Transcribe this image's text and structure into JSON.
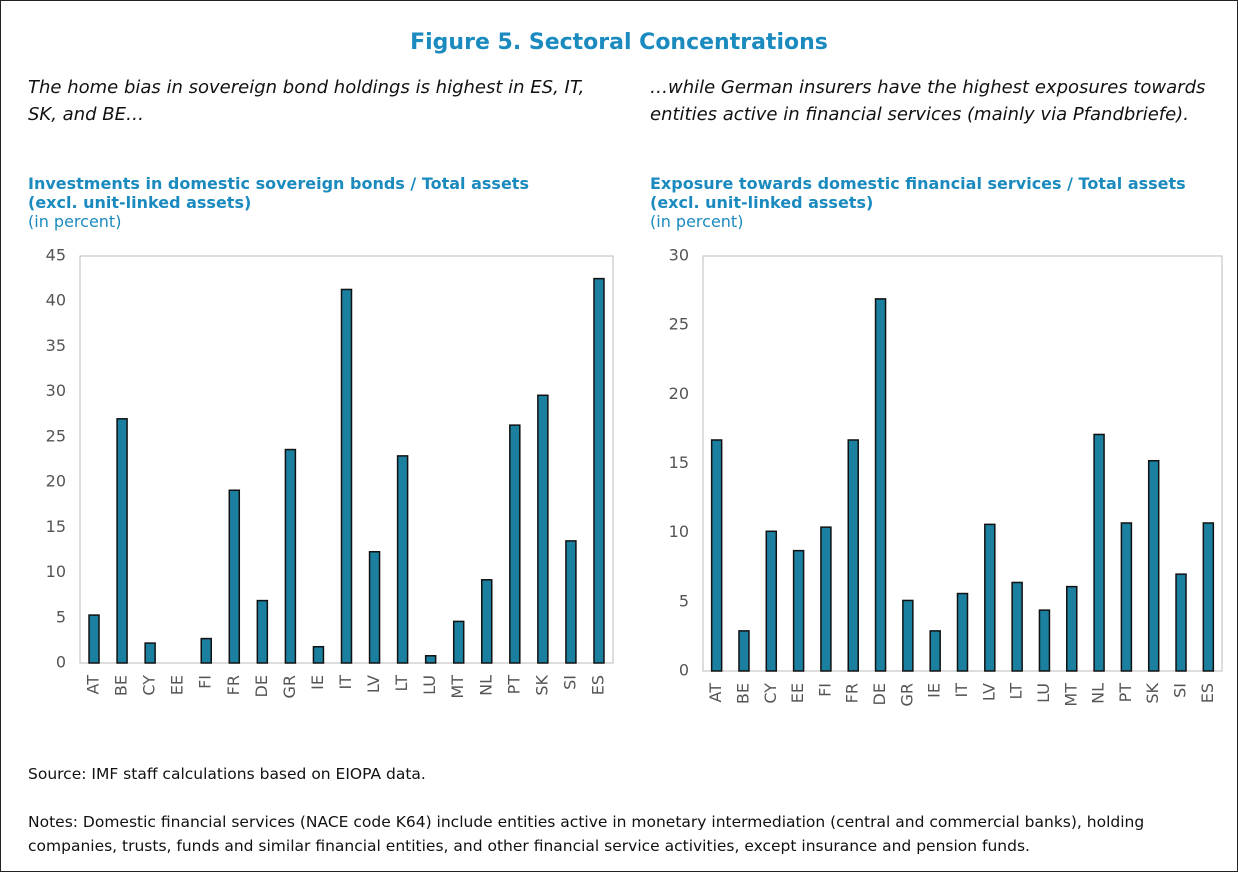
{
  "figure_title": "Figure 5. Sectoral Concentrations",
  "chart_data": [
    {
      "type": "bar",
      "caption": "The home bias in sovereign bond holdings is highest in ES, IT, SK, and BE…",
      "title": [
        "Investments in domestic sovereign bonds / Total assets",
        "(excl. unit-linked assets)"
      ],
      "subtitle": "(in percent)",
      "categories": [
        "AT",
        "BE",
        "CY",
        "EE",
        "FI",
        "FR",
        "DE",
        "GR",
        "IE",
        "IT",
        "LV",
        "LT",
        "LU",
        "MT",
        "NL",
        "PT",
        "SK",
        "SI",
        "ES"
      ],
      "values": [
        5.3,
        27,
        2.2,
        0,
        2.7,
        19.1,
        6.9,
        23.6,
        1.8,
        41.3,
        12.3,
        22.9,
        0.8,
        4.6,
        9.2,
        26.3,
        29.6,
        13.5,
        42.5
      ],
      "color": "#1b7fa0",
      "ylim": [
        0,
        45
      ],
      "yticks": [
        0,
        5,
        10,
        15,
        20,
        25,
        30,
        35,
        40,
        45
      ]
    },
    {
      "type": "bar",
      "caption": "…while German insurers have the highest exposures towards entities active in financial services (mainly via Pfandbriefe).",
      "title": [
        "Exposure towards domestic financial services / Total assets",
        "(excl. unit-linked assets)"
      ],
      "subtitle": "(in percent)",
      "categories": [
        "AT",
        "BE",
        "CY",
        "EE",
        "FI",
        "FR",
        "DE",
        "GR",
        "IE",
        "IT",
        "LV",
        "LT",
        "LU",
        "MT",
        "NL",
        "PT",
        "SK",
        "SI",
        "ES"
      ],
      "values": [
        16.7,
        2.9,
        10.1,
        8.7,
        10.4,
        16.7,
        26.9,
        5.1,
        2.9,
        5.6,
        10.6,
        6.4,
        4.4,
        6.1,
        17.1,
        10.7,
        15.2,
        7.0,
        10.7
      ],
      "color": "#1b7fa0",
      "ylim": [
        0,
        30
      ],
      "yticks": [
        0,
        5,
        10,
        15,
        20,
        25,
        30
      ]
    }
  ],
  "source": "Source: IMF staff calculations based on EIOPA data.",
  "notes": "Notes: Domestic financial services (NACE code K64) include entities active in monetary intermediation (central and commercial banks), holding companies, trusts, funds and similar financial entities, and other financial service activities, except insurance and pension funds."
}
